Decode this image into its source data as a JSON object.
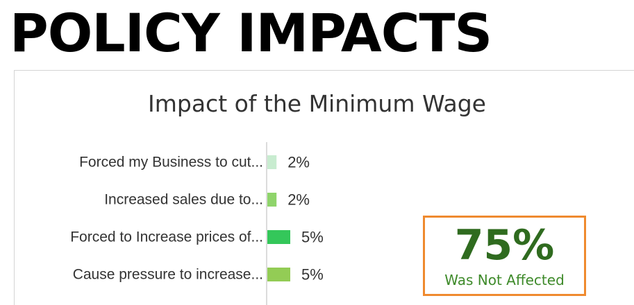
{
  "headline": "POLICY IMPACTS",
  "chart_data": {
    "type": "bar",
    "orientation": "horizontal",
    "title": "Impact of the Minimum Wage",
    "categories": [
      "Forced my Business to cut...",
      "Increased sales due to...",
      "Forced to Increase prices of...",
      "Cause pressure to increase..."
    ],
    "values": [
      2,
      2,
      5,
      5
    ],
    "data_labels": [
      "2%",
      "2%",
      "5%",
      "5%"
    ],
    "bar_colors": [
      "#c8ecd0",
      "#8fd46b",
      "#34c75a",
      "#93cc55"
    ],
    "value_unit": "%",
    "grid": false,
    "legend": "none"
  },
  "callout": {
    "value": "75%",
    "label": "Was Not Affected",
    "border_color": "#ef8a2e",
    "value_color": "#2f6b1f",
    "label_color": "#3e8a2a"
  }
}
